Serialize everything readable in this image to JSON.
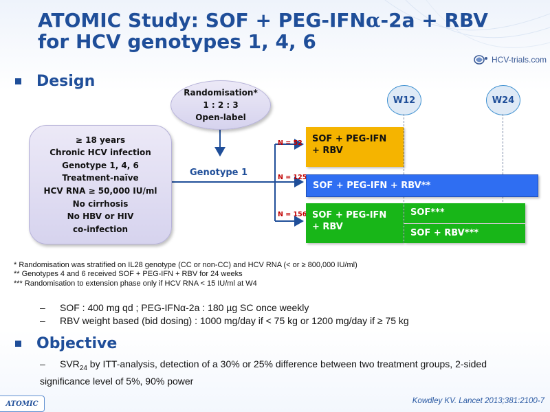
{
  "title": {
    "line1_prefix": "ATOMIC Study: SOF + PEG-IFN",
    "alpha": "α",
    "line1_suffix": "-2a + RBV",
    "line2": "for HCV genotypes 1, 4, 6"
  },
  "brand": {
    "text": "HCV-trials.com",
    "icon": "hcv-trials-logo-icon"
  },
  "design": {
    "heading": "Design",
    "inclusion_criteria": [
      "≥ 18 years",
      "Chronic HCV infection",
      "Genotype 1, 4, 6",
      "Treatment-naïve",
      "HCV RNA ≥ 50,000 IU/ml",
      "No cirrhosis",
      "No HBV or HIV",
      "co-infection"
    ],
    "randomisation": {
      "line1": "Randomisation*",
      "line2": "1 : 2 : 3",
      "line3": "Open-label"
    },
    "genotype_label": "Genotype 1",
    "weeks": {
      "w12": "W12",
      "w24": "W24"
    },
    "arms": {
      "arm1": {
        "n": "N = 52",
        "label_line1": "SOF + PEG-IFN",
        "label_line2": "+ RBV",
        "color": "#f5b400"
      },
      "arm2": {
        "n": "N = 125",
        "label": "SOF + PEG-IFN + RBV**",
        "color": "#2f6ef2"
      },
      "arm3": {
        "n": "N = 156",
        "label_line1": "SOF + PEG-IFN",
        "label_line2": "+ RBV",
        "extension_a": "SOF***",
        "extension_b": "SOF + RBV***",
        "color": "#18b618"
      }
    }
  },
  "footnotes": [
    "* Randomisation was stratified on IL28 genotype (CC or non-CC) and HCV RNA (< or ≥ 800,000 IU/ml)",
    "** Genotypes 4 and 6 received SOF + PEG-IFN + RBV for 24 weeks",
    "*** Randomisation to extension phase only if HCV RNA < 15 IU/ml at W4"
  ],
  "dosing": {
    "dash": "–",
    "items": [
      "SOF : 400 mg qd ; PEG-IFNα-2a : 180 µg SC once weekly",
      "RBV weight based (bid dosing) : 1000 mg/day if < 75 kg or 1200 mg/day if ≥ 75 kg"
    ]
  },
  "objective": {
    "heading": "Objective",
    "svr_prefix": "SVR",
    "svr_subscript": "24",
    "text_rest": " by ITT-analysis, detection of a 30% or 25% difference between two treatment groups, 2-sided significance level of 5%, 90% power"
  },
  "footer": {
    "study_tag": "ATOMIC",
    "citation": "Kowdley KV. Lancet 2013;381:2100-7"
  },
  "colors": {
    "title": "#1f4e99",
    "accent_blue": "#2f6ef2",
    "accent_orange": "#f5b400",
    "accent_green": "#18b618",
    "n_label_red": "#c00000"
  }
}
